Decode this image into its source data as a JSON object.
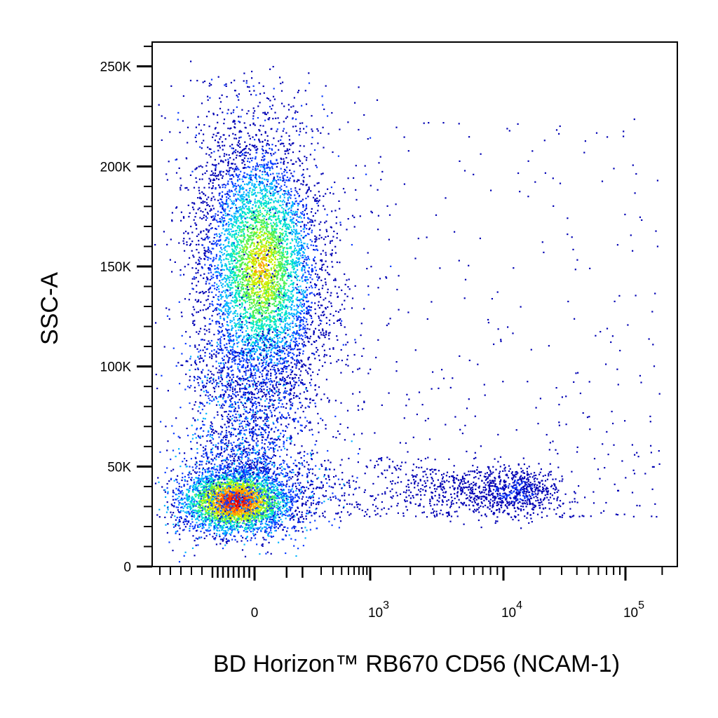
{
  "chart_data": {
    "type": "scatter",
    "title": "",
    "xlabel": "BD Horizon™ RB670 CD56 (NCAM-1)",
    "ylabel": "SSC-A",
    "x_scale": "biexponential",
    "y_scale": "linear",
    "ylim": [
      0,
      262144
    ],
    "y_ticks": [
      {
        "value": 0,
        "label": "0"
      },
      {
        "value": 50000,
        "label": "50K"
      },
      {
        "value": 100000,
        "label": "100K"
      },
      {
        "value": 150000,
        "label": "150K"
      },
      {
        "value": 200000,
        "label": "200K"
      },
      {
        "value": 250000,
        "label": "250K"
      }
    ],
    "x_ticks": [
      {
        "value": 0,
        "base": "0",
        "exp": ""
      },
      {
        "value": 1000,
        "base": "10",
        "exp": "3"
      },
      {
        "value": 10000,
        "base": "10",
        "exp": "4"
      },
      {
        "value": 100000,
        "base": "10",
        "exp": "5"
      }
    ],
    "density_colors": [
      "#0000b4",
      "#0a3cff",
      "#00b4ff",
      "#00e6c8",
      "#50f050",
      "#c8f000",
      "#ffa000",
      "#ff3c00",
      "#e00000"
    ],
    "populations": [
      {
        "x_center": -150,
        "y_center": 33000,
        "x_spread": 220,
        "y_spread": 9000,
        "density": "high"
      },
      {
        "x_center": 0,
        "y_center": 150000,
        "x_spread": 260,
        "y_spread": 38000,
        "density": "medium"
      },
      {
        "x_center": 11000,
        "y_center": 38000,
        "x_spread_decades": 0.28,
        "y_spread": 7000,
        "density": "low"
      }
    ],
    "grid": false,
    "legend": "none"
  }
}
